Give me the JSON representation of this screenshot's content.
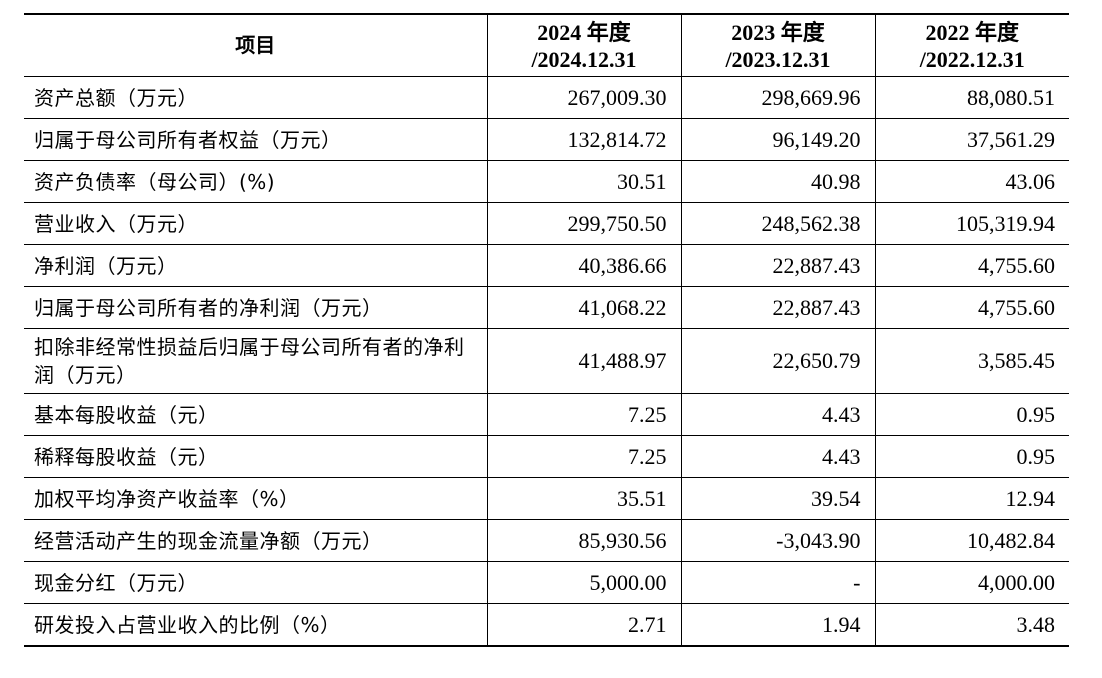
{
  "table": {
    "header": {
      "item": "项目",
      "columns": [
        {
          "year": "2024 年度",
          "date": "/2024.12.31"
        },
        {
          "year": "2023 年度",
          "date": "/2023.12.31"
        },
        {
          "year": "2022 年度",
          "date": "/2022.12.31"
        }
      ]
    },
    "rows": [
      {
        "label": "资产总额（万元）",
        "values": [
          "267,009.30",
          "298,669.96",
          "88,080.51"
        ]
      },
      {
        "label": "归属于母公司所有者权益（万元）",
        "values": [
          "132,814.72",
          "96,149.20",
          "37,561.29"
        ]
      },
      {
        "label": "资产负债率（母公司）(%)",
        "values": [
          "30.51",
          "40.98",
          "43.06"
        ]
      },
      {
        "label": "营业收入（万元）",
        "values": [
          "299,750.50",
          "248,562.38",
          "105,319.94"
        ]
      },
      {
        "label": "净利润（万元）",
        "values": [
          "40,386.66",
          "22,887.43",
          "4,755.60"
        ]
      },
      {
        "label": "归属于母公司所有者的净利润（万元）",
        "values": [
          "41,068.22",
          "22,887.43",
          "4,755.60"
        ]
      },
      {
        "label": "扣除非经常性损益后归属于母公司所有者的净利润（万元）",
        "values": [
          "41,488.97",
          "22,650.79",
          "3,585.45"
        ]
      },
      {
        "label": "基本每股收益（元）",
        "values": [
          "7.25",
          "4.43",
          "0.95"
        ]
      },
      {
        "label": "稀释每股收益（元）",
        "values": [
          "7.25",
          "4.43",
          "0.95"
        ]
      },
      {
        "label": "加权平均净资产收益率（%）",
        "values": [
          "35.51",
          "39.54",
          "12.94"
        ]
      },
      {
        "label": "经营活动产生的现金流量净额（万元）",
        "values": [
          "85,930.56",
          "-3,043.90",
          "10,482.84"
        ]
      },
      {
        "label": "现金分红（万元）",
        "values": [
          "5,000.00",
          "-",
          "4,000.00"
        ]
      },
      {
        "label": "研发投入占营业收入的比例（%）",
        "values": [
          "2.71",
          "1.94",
          "3.48"
        ]
      }
    ]
  }
}
